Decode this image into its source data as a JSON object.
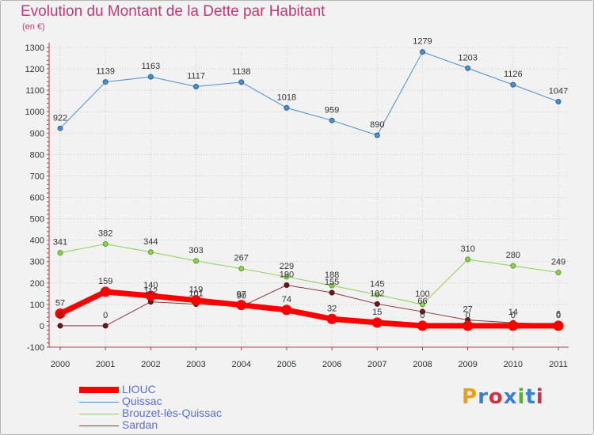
{
  "title": "Evolution du Montant de la Dette par Habitant",
  "subtitle": "(en €)",
  "logo": "Proxiti",
  "colors": {
    "title": "#c03a7a",
    "legend_text": "#5b6fd0",
    "grid": "#cccccc",
    "axis": "#c03a3a",
    "logo": [
      "#e8a020",
      "#3a7fd5",
      "#d03040",
      "#3a7fd5",
      "#5ab030",
      "#3a7fd5",
      "#d03040"
    ]
  },
  "chart_data": {
    "type": "line",
    "x": [
      "2000",
      "2001",
      "2002",
      "2003",
      "2004",
      "2005",
      "2006",
      "2007",
      "2008",
      "2009",
      "2010",
      "2011"
    ],
    "ylim": [
      -100,
      1300
    ],
    "yticks": [
      -100,
      0,
      100,
      200,
      300,
      400,
      500,
      600,
      700,
      800,
      900,
      1000,
      1100,
      1200,
      1300
    ],
    "grid": true,
    "legend_position": "bottom-left",
    "series": [
      {
        "name": "LIOUC",
        "color": "#ff0000",
        "values": [
          57,
          159,
          140,
          119,
          97,
          74,
          32,
          15,
          0,
          0,
          0,
          0
        ],
        "labels": [
          "57",
          "159",
          "140",
          "119",
          "97",
          "74",
          "32",
          "15",
          "0",
          "0",
          "0",
          "0"
        ]
      },
      {
        "name": "Quissac",
        "color": "#4a8fd0",
        "values": [
          922,
          1139,
          1163,
          1117,
          1138,
          1018,
          959,
          890,
          1279,
          1203,
          1126,
          1047
        ],
        "labels": [
          "922",
          "1139",
          "1163",
          "1117",
          "1138",
          "1018",
          "959",
          "890",
          "1279",
          "1203",
          "1126",
          "1047"
        ]
      },
      {
        "name": "Brouzet-lès-Quissac",
        "color": "#8fd050",
        "values": [
          341,
          382,
          344,
          303,
          267,
          229,
          188,
          145,
          100,
          310,
          280,
          249
        ],
        "labels": [
          "341",
          "382",
          "344",
          "303",
          "267",
          "229",
          "188",
          "145",
          "100",
          "310",
          "280",
          "249"
        ]
      },
      {
        "name": "Sardan",
        "color": "#8a3a3a",
        "values": [
          0,
          0,
          112,
          101,
          90,
          190,
          155,
          102,
          66,
          27,
          14,
          6
        ],
        "labels": [
          "0",
          "0",
          "112",
          "101",
          "90",
          "190",
          "155",
          "102",
          "66",
          "27",
          "14",
          "6"
        ]
      }
    ]
  }
}
